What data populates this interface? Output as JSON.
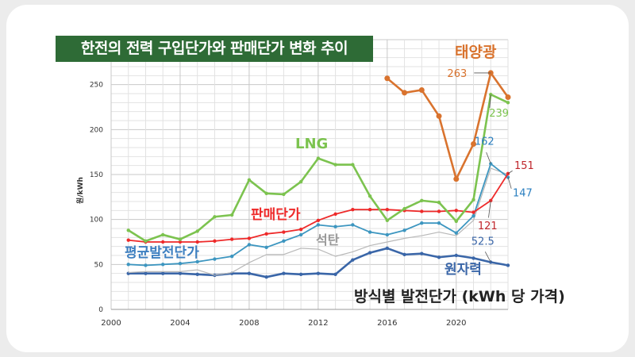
{
  "chart_data": {
    "type": "line",
    "title": "한전의 전력 구입단가와 판매단가 변화 추이",
    "subtitle": "방식별 발전단가 (kWh 당 가격)",
    "ylabel": "원/kWh",
    "xlabel": "",
    "xlim": [
      2000,
      2023
    ],
    "ylim": [
      0,
      300
    ],
    "xticks": [
      2000,
      2004,
      2008,
      2012,
      2016,
      2020
    ],
    "yticks": [
      0,
      50,
      100,
      150,
      200,
      250
    ],
    "grid": true,
    "x": [
      2001,
      2002,
      2003,
      2004,
      2005,
      2006,
      2007,
      2008,
      2009,
      2010,
      2011,
      2012,
      2013,
      2014,
      2015,
      2016,
      2017,
      2018,
      2019,
      2020,
      2021,
      2022,
      2023
    ],
    "series": [
      {
        "name": "태양광",
        "color": "#d9732e",
        "values": [
          null,
          null,
          null,
          null,
          null,
          null,
          null,
          null,
          null,
          null,
          null,
          null,
          null,
          null,
          null,
          257,
          241,
          244,
          215,
          145,
          184,
          263,
          236
        ]
      },
      {
        "name": "LNG",
        "color": "#7cc34f",
        "values": [
          88,
          76,
          83,
          78,
          87,
          103,
          105,
          144,
          129,
          128,
          142,
          168,
          161,
          161,
          126,
          99,
          112,
          121,
          119,
          98,
          122,
          239,
          230
        ]
      },
      {
        "name": "판매단가",
        "color": "#ee2a2a",
        "values": [
          77,
          75,
          75,
          75,
          75,
          76,
          78,
          79,
          84,
          86,
          89,
          99,
          106,
          111,
          111,
          111,
          110,
          109,
          109,
          110,
          108,
          121,
          151
        ]
      },
      {
        "name": "평균발전단가",
        "color": "#3d96c0",
        "values": [
          50,
          49,
          50,
          51,
          53,
          56,
          59,
          72,
          69,
          76,
          83,
          94,
          92,
          94,
          86,
          83,
          88,
          96,
          96,
          85,
          104,
          162,
          147
        ]
      },
      {
        "name": "석탄",
        "color": "#b8b8b8",
        "values": [
          41,
          42,
          42,
          42,
          44,
          38,
          41,
          52,
          61,
          61,
          68,
          67,
          59,
          64,
          71,
          75,
          79,
          82,
          86,
          82,
          99,
          157,
          150
        ]
      },
      {
        "name": "원자력",
        "color": "#3a66a8",
        "values": [
          40,
          40,
          40,
          40,
          39,
          38,
          40,
          40,
          36,
          40,
          39,
          40,
          39,
          55,
          63,
          68,
          61,
          62,
          58,
          60,
          57,
          52.5,
          49
        ]
      }
    ],
    "annotations": [
      {
        "text": "263",
        "series": "태양광",
        "x": 2022,
        "color": "#d9732e"
      },
      {
        "text": "239",
        "series": "LNG",
        "x": 2022,
        "color": "#7cc34f"
      },
      {
        "text": "162",
        "series": "평균발전단가",
        "x": 2022,
        "color": "#2a7fc0"
      },
      {
        "text": "151",
        "series": "판매단가",
        "x": 2023,
        "color": "#c0262c"
      },
      {
        "text": "147",
        "series": "평균발전단가",
        "x": 2023,
        "color": "#2a7fc0"
      },
      {
        "text": "121",
        "series": "판매단가",
        "x": 2022,
        "color": "#c0262c"
      },
      {
        "text": "52.5",
        "series": "원자력",
        "x": 2022,
        "color": "#3a66a8"
      }
    ]
  }
}
